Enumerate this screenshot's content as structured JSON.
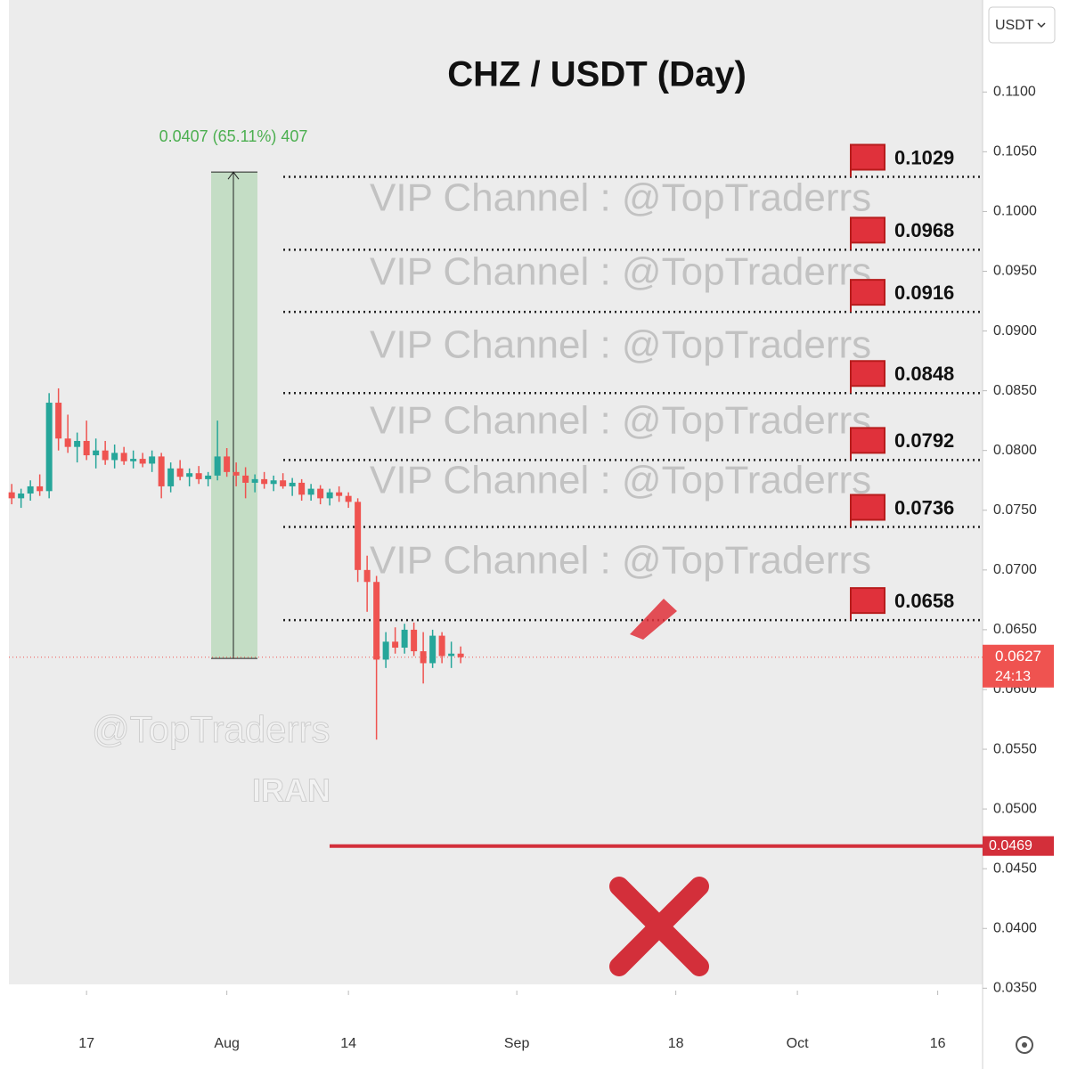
{
  "chart_data": {
    "type": "candlestick",
    "title": "CHZ / USDT (Day)",
    "currency_button": "USDT",
    "up_color": "#26a69a",
    "down_color": "#ef5350",
    "xlim": [
      7.7,
      111.8
    ],
    "xticks": [
      {
        "value": 16,
        "label": "17"
      },
      {
        "value": 31,
        "label": "Aug"
      },
      {
        "value": 44,
        "label": "14"
      },
      {
        "value": 62,
        "label": "Sep"
      },
      {
        "value": 79,
        "label": "18"
      },
      {
        "value": 92,
        "label": "Oct"
      },
      {
        "value": 107,
        "label": "16"
      }
    ],
    "ylim": [
      0.0348,
      0.1177
    ],
    "yticks": [
      {
        "value": 0.11,
        "label": "0.1100"
      },
      {
        "value": 0.105,
        "label": "0.1050"
      },
      {
        "value": 0.1,
        "label": "0.1000"
      },
      {
        "value": 0.095,
        "label": "0.0950"
      },
      {
        "value": 0.09,
        "label": "0.0900"
      },
      {
        "value": 0.085,
        "label": "0.0850"
      },
      {
        "value": 0.08,
        "label": "0.0800"
      },
      {
        "value": 0.075,
        "label": "0.0750"
      },
      {
        "value": 0.07,
        "label": "0.0700"
      },
      {
        "value": 0.065,
        "label": "0.0650"
      },
      {
        "value": 0.06,
        "label": "0.0600"
      },
      {
        "value": 0.055,
        "label": "0.0550"
      },
      {
        "value": 0.05,
        "label": "0.0500"
      },
      {
        "value": 0.045,
        "label": "0.0450"
      },
      {
        "value": 0.04,
        "label": "0.0400"
      },
      {
        "value": 0.035,
        "label": "0.0350"
      }
    ],
    "x": [
      8,
      9,
      10,
      11,
      12,
      13,
      14,
      15,
      16,
      17,
      18,
      19,
      20,
      21,
      22,
      23,
      24,
      25,
      26,
      27,
      28,
      29,
      30,
      31,
      32,
      33,
      34,
      35,
      36,
      37,
      38,
      39,
      40,
      41,
      42,
      43,
      44,
      45,
      46,
      47,
      48,
      49,
      50,
      51,
      52,
      53,
      54,
      55,
      56
    ],
    "open": [
      0.0765,
      0.076,
      0.0764,
      0.077,
      0.0766,
      0.084,
      0.081,
      0.0803,
      0.0808,
      0.0796,
      0.08,
      0.0792,
      0.0798,
      0.0791,
      0.0793,
      0.0789,
      0.0795,
      0.077,
      0.0785,
      0.0778,
      0.0781,
      0.0776,
      0.0779,
      0.0795,
      0.0782,
      0.0779,
      0.0773,
      0.0776,
      0.0772,
      0.0775,
      0.077,
      0.0773,
      0.0763,
      0.0768,
      0.076,
      0.0765,
      0.0762,
      0.0757,
      0.07,
      0.069,
      0.0625,
      0.064,
      0.0635,
      0.065,
      0.0632,
      0.0622,
      0.0645,
      0.0628,
      0.063
    ],
    "high": [
      0.0772,
      0.0768,
      0.0775,
      0.078,
      0.0848,
      0.0852,
      0.083,
      0.0815,
      0.0825,
      0.081,
      0.0808,
      0.0805,
      0.0803,
      0.08,
      0.0798,
      0.08,
      0.0798,
      0.079,
      0.0792,
      0.0785,
      0.0787,
      0.0782,
      0.0825,
      0.0802,
      0.079,
      0.0786,
      0.078,
      0.0782,
      0.0779,
      0.0781,
      0.0777,
      0.0776,
      0.0772,
      0.0771,
      0.0768,
      0.077,
      0.0765,
      0.076,
      0.0712,
      0.0695,
      0.0648,
      0.0652,
      0.0655,
      0.0656,
      0.0648,
      0.065,
      0.0648,
      0.064,
      0.0636
    ],
    "low": [
      0.0755,
      0.0752,
      0.0758,
      0.0762,
      0.076,
      0.08,
      0.0798,
      0.079,
      0.0792,
      0.0785,
      0.0788,
      0.0785,
      0.0788,
      0.0785,
      0.0786,
      0.0782,
      0.076,
      0.0765,
      0.0775,
      0.077,
      0.0772,
      0.077,
      0.0775,
      0.0778,
      0.077,
      0.076,
      0.0765,
      0.0768,
      0.0766,
      0.0768,
      0.0762,
      0.0758,
      0.0758,
      0.0755,
      0.0754,
      0.0757,
      0.0752,
      0.069,
      0.0665,
      0.0558,
      0.0618,
      0.063,
      0.063,
      0.0628,
      0.0605,
      0.0618,
      0.0622,
      0.0618,
      0.0622
    ],
    "close": [
      0.076,
      0.0764,
      0.077,
      0.0766,
      0.084,
      0.081,
      0.0803,
      0.0808,
      0.0796,
      0.08,
      0.0792,
      0.0798,
      0.0791,
      0.0793,
      0.0789,
      0.0795,
      0.077,
      0.0785,
      0.0778,
      0.0781,
      0.0776,
      0.0779,
      0.0795,
      0.0782,
      0.0779,
      0.0773,
      0.0776,
      0.0772,
      0.0775,
      0.077,
      0.0773,
      0.0763,
      0.0768,
      0.076,
      0.0765,
      0.0762,
      0.0757,
      0.07,
      0.069,
      0.0625,
      0.064,
      0.0635,
      0.065,
      0.0632,
      0.0622,
      0.0645,
      0.0628,
      0.063,
      0.0627
    ],
    "measure": {
      "label": "0.0407 (65.11%) 407",
      "from": 0.0626,
      "to": 0.1033
    },
    "targets": [
      0.1029,
      0.0968,
      0.0916,
      0.0848,
      0.0792,
      0.0736,
      0.0658
    ],
    "stop": 0.0469,
    "last_price": {
      "value": 0.0627,
      "countdown": "24:13"
    },
    "watermarks": [
      "VIP Channel  : @TopTraderrs",
      "VIP Channel  : @TopTraderrs",
      "VIP Channel  : @TopTraderrs",
      "VIP Channel  : @TopTraderrs",
      "VIP Channel  : @TopTraderrs",
      "VIP Channel  : @TopTraderrs",
      "@TopTraderrs",
      "IRAN"
    ]
  }
}
